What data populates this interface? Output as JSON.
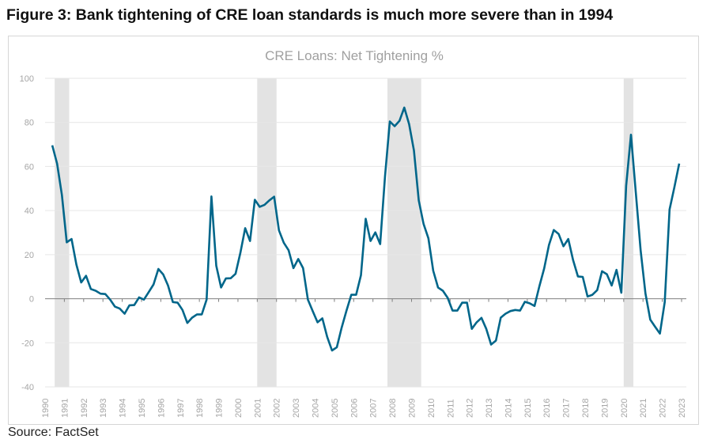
{
  "figure_title": "Figure 3: Bank tightening of CRE loan standards is much more severe than in 1994",
  "source": "Source: FactSet",
  "colors": {
    "line": "#00668a",
    "recession": "#e3e3e3",
    "grid": "#e6e6e6",
    "zero_axis": "#7f7f7f",
    "labels": "#a6a6a6"
  },
  "chart_data": {
    "type": "line",
    "title": "CRE Loans: Net Tightening %",
    "xlabel": "",
    "ylabel": "",
    "ylim": [
      -40,
      100
    ],
    "yticks": [
      100,
      80,
      60,
      40,
      20,
      0,
      -20,
      -40
    ],
    "xlim": [
      1990,
      2023
    ],
    "xticks": [
      "1990",
      "1991",
      "1992",
      "1993",
      "1994",
      "1995",
      "1996",
      "1997",
      "1998",
      "1999",
      "2000",
      "2001",
      "2002",
      "2003",
      "2004",
      "2005",
      "2006",
      "2007",
      "2008",
      "2009",
      "2010",
      "2011",
      "2012",
      "2013",
      "2014",
      "2015",
      "2016",
      "2017",
      "2018",
      "2019",
      "2020",
      "2021",
      "2022",
      "2023"
    ],
    "grid": true,
    "legend": "none",
    "recession_shading": [
      [
        "1990Q3",
        "1991Q1"
      ],
      [
        "2001Q1",
        "2001Q4"
      ],
      [
        "2007Q4",
        "2009Q2"
      ],
      [
        "2020Q1",
        "2020Q2"
      ]
    ],
    "x": [
      "1990Q2",
      "1990Q3",
      "1990Q4",
      "1991Q1",
      "1991Q2",
      "1991Q3",
      "1991Q4",
      "1992Q1",
      "1992Q2",
      "1992Q3",
      "1992Q4",
      "1993Q1",
      "1993Q2",
      "1993Q3",
      "1993Q4",
      "1994Q1",
      "1994Q2",
      "1994Q3",
      "1994Q4",
      "1995Q1",
      "1995Q2",
      "1995Q3",
      "1995Q4",
      "1996Q1",
      "1996Q2",
      "1996Q3",
      "1996Q4",
      "1997Q1",
      "1997Q2",
      "1997Q3",
      "1997Q4",
      "1998Q1",
      "1998Q2",
      "1998Q3",
      "1998Q4",
      "1999Q1",
      "1999Q2",
      "1999Q3",
      "1999Q4",
      "2000Q1",
      "2000Q2",
      "2000Q3",
      "2000Q4",
      "2001Q1",
      "2001Q2",
      "2001Q3",
      "2001Q4",
      "2002Q1",
      "2002Q2",
      "2002Q3",
      "2002Q4",
      "2003Q1",
      "2003Q2",
      "2003Q3",
      "2003Q4",
      "2004Q1",
      "2004Q2",
      "2004Q3",
      "2004Q4",
      "2005Q1",
      "2005Q2",
      "2005Q3",
      "2005Q4",
      "2006Q1",
      "2006Q2",
      "2006Q3",
      "2006Q4",
      "2007Q1",
      "2007Q2",
      "2007Q3",
      "2007Q4",
      "2008Q1",
      "2008Q2",
      "2008Q3",
      "2008Q4",
      "2009Q1",
      "2009Q2",
      "2009Q3",
      "2009Q4",
      "2010Q1",
      "2010Q2",
      "2010Q3",
      "2010Q4",
      "2011Q1",
      "2011Q2",
      "2011Q3",
      "2011Q4",
      "2012Q1",
      "2012Q2",
      "2012Q3",
      "2012Q4",
      "2013Q1",
      "2013Q2",
      "2013Q3",
      "2013Q4",
      "2014Q1",
      "2014Q2",
      "2014Q3",
      "2014Q4",
      "2015Q1",
      "2015Q2",
      "2015Q3",
      "2015Q4",
      "2016Q1",
      "2016Q2",
      "2016Q3",
      "2016Q4",
      "2017Q1",
      "2017Q2",
      "2017Q3",
      "2017Q4",
      "2018Q1",
      "2018Q2",
      "2018Q3",
      "2018Q4",
      "2019Q1",
      "2019Q2",
      "2019Q3",
      "2019Q4",
      "2020Q1",
      "2020Q2",
      "2020Q3",
      "2020Q4",
      "2021Q1",
      "2021Q2",
      "2021Q3",
      "2021Q4",
      "2022Q1",
      "2022Q2",
      "2022Q3",
      "2022Q4"
    ],
    "values": [
      69.6,
      61.3,
      47,
      25.6,
      27.1,
      15.5,
      7.4,
      10.4,
      4.4,
      3.6,
      2.3,
      2.1,
      -0.4,
      -3.6,
      -4.5,
      -6.8,
      -3,
      -2.9,
      0.6,
      -0.4,
      3,
      6.5,
      13.5,
      11,
      6,
      -1.5,
      -1.8,
      -5.1,
      -11,
      -8.6,
      -7.1,
      -7.1,
      -0.4,
      46.4,
      15,
      5.1,
      9.2,
      9.3,
      11.3,
      20.8,
      32,
      26.2,
      44.9,
      41.7,
      42.6,
      44.6,
      46.3,
      31,
      25.4,
      22,
      13.9,
      18,
      13.9,
      -0.4,
      -5.6,
      -10.7,
      -8.9,
      -17.3,
      -23.5,
      -22,
      -13.1,
      -5.4,
      1.8,
      1.8,
      10.7,
      36.3,
      26.2,
      30.1,
      24.8,
      55.4,
      80.4,
      78.3,
      80.7,
      86.7,
      79.2,
      67.3,
      44.6,
      33.9,
      27.4,
      12.7,
      5.1,
      3.6,
      0.4,
      -5.4,
      -5.4,
      -1.8,
      -1.8,
      -13.7,
      -10.7,
      -8.7,
      -13.7,
      -20.8,
      -19,
      -8.6,
      -6.8,
      -5.6,
      -5.1,
      -5.4,
      -1.4,
      -2.1,
      -3.3,
      5.6,
      13.7,
      24.4,
      31.2,
      29.4,
      23.8,
      27.1,
      17.5,
      10.1,
      9.9,
      1,
      1.8,
      3.9,
      12.5,
      11.1,
      6,
      13.1,
      2.7,
      51.2,
      74.4,
      48.2,
      22,
      2.4,
      -9.5,
      -12.7,
      -15.8,
      -1.5,
      40.5,
      50.6,
      61.3
    ]
  }
}
